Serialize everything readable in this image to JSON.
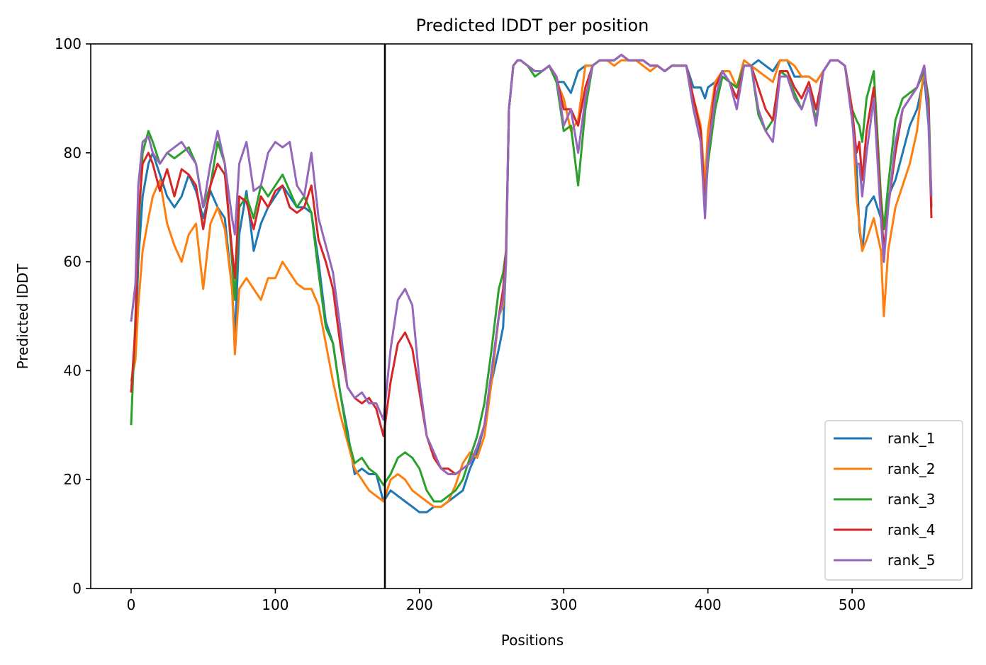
{
  "chart_data": {
    "type": "line",
    "title": "Predicted lDDT per position",
    "xlabel": "Positions",
    "ylabel": "Predicted lDDT",
    "xlim": [
      -28,
      583
    ],
    "ylim": [
      0,
      100
    ],
    "xticks": [
      0,
      100,
      200,
      300,
      400,
      500
    ],
    "yticks": [
      0,
      20,
      40,
      60,
      80,
      100
    ],
    "grid": false,
    "legend_position": "lower-right",
    "vline": {
      "x": 176,
      "color": "#000000"
    },
    "series": [
      {
        "name": "rank_1",
        "color": "#1f77b4",
        "x": [
          0,
          3,
          5,
          8,
          12,
          15,
          20,
          25,
          30,
          35,
          40,
          45,
          50,
          55,
          60,
          65,
          70,
          72,
          75,
          80,
          85,
          90,
          95,
          100,
          105,
          110,
          115,
          120,
          125,
          130,
          135,
          140,
          145,
          150,
          155,
          160,
          165,
          170,
          175,
          180,
          185,
          190,
          195,
          200,
          205,
          210,
          215,
          220,
          225,
          230,
          235,
          240,
          245,
          250,
          255,
          258,
          260,
          262,
          265,
          268,
          270,
          275,
          280,
          285,
          290,
          295,
          300,
          305,
          310,
          315,
          320,
          325,
          330,
          335,
          340,
          345,
          350,
          355,
          360,
          365,
          370,
          375,
          380,
          385,
          390,
          395,
          398,
          400,
          405,
          410,
          415,
          420,
          425,
          430,
          435,
          440,
          445,
          450,
          455,
          460,
          465,
          470,
          475,
          480,
          485,
          490,
          495,
          500,
          503,
          505,
          507,
          510,
          515,
          520,
          522,
          525,
          530,
          535,
          540,
          545,
          550,
          553,
          555
        ],
        "values": [
          36,
          45,
          60,
          72,
          78,
          80,
          76,
          72,
          70,
          72,
          76,
          73,
          68,
          73,
          70,
          68,
          55,
          46,
          65,
          73,
          62,
          67,
          70,
          72,
          74,
          72,
          70,
          70,
          69,
          60,
          49,
          45,
          36,
          29,
          21,
          22,
          21,
          21,
          16,
          18,
          17,
          16,
          15,
          14,
          14,
          15,
          15,
          16,
          17,
          18,
          22,
          25,
          30,
          38,
          44,
          48,
          60,
          88,
          96,
          97,
          97,
          96,
          95,
          95,
          96,
          93,
          93,
          91,
          95,
          96,
          96,
          97,
          97,
          97,
          98,
          97,
          97,
          97,
          96,
          96,
          95,
          96,
          96,
          96,
          92,
          92,
          90,
          92,
          93,
          95,
          93,
          92,
          96,
          96,
          97,
          96,
          95,
          97,
          97,
          94,
          94,
          94,
          93,
          95,
          97,
          97,
          96,
          88,
          78,
          66,
          62,
          70,
          72,
          68,
          60,
          72,
          75,
          80,
          85,
          88,
          94,
          85,
          70
        ]
      },
      {
        "name": "rank_2",
        "color": "#ff7f0e",
        "x": [
          0,
          3,
          5,
          8,
          12,
          15,
          20,
          25,
          30,
          35,
          40,
          45,
          50,
          55,
          60,
          65,
          70,
          72,
          75,
          80,
          85,
          90,
          95,
          100,
          105,
          110,
          115,
          120,
          125,
          130,
          135,
          140,
          145,
          150,
          155,
          160,
          165,
          170,
          175,
          180,
          185,
          190,
          195,
          200,
          205,
          210,
          215,
          220,
          225,
          230,
          235,
          240,
          245,
          250,
          255,
          258,
          260,
          262,
          265,
          268,
          270,
          275,
          280,
          285,
          290,
          295,
          300,
          305,
          310,
          315,
          320,
          325,
          330,
          335,
          340,
          345,
          350,
          355,
          360,
          365,
          370,
          375,
          380,
          385,
          390,
          395,
          398,
          400,
          405,
          410,
          415,
          420,
          425,
          430,
          435,
          440,
          445,
          450,
          455,
          460,
          465,
          470,
          475,
          480,
          485,
          490,
          495,
          500,
          503,
          505,
          507,
          510,
          515,
          520,
          522,
          525,
          530,
          535,
          540,
          545,
          550,
          553,
          555
        ],
        "values": [
          38,
          42,
          52,
          62,
          68,
          72,
          75,
          67,
          63,
          60,
          65,
          67,
          55,
          67,
          70,
          66,
          55,
          43,
          55,
          57,
          55,
          53,
          57,
          57,
          60,
          58,
          56,
          55,
          55,
          52,
          45,
          38,
          32,
          27,
          22,
          20,
          18,
          17,
          16,
          20,
          21,
          20,
          18,
          17,
          16,
          15,
          15,
          16,
          19,
          23,
          25,
          24,
          28,
          38,
          50,
          52,
          60,
          88,
          96,
          97,
          97,
          96,
          95,
          95,
          96,
          93,
          90,
          84,
          86,
          96,
          96,
          97,
          97,
          96,
          97,
          97,
          97,
          96,
          95,
          96,
          95,
          96,
          96,
          96,
          90,
          85,
          74,
          84,
          93,
          95,
          95,
          92,
          97,
          96,
          95,
          94,
          93,
          97,
          97,
          96,
          94,
          94,
          93,
          95,
          97,
          97,
          96,
          88,
          72,
          67,
          62,
          64,
          68,
          62,
          50,
          62,
          70,
          74,
          78,
          84,
          96,
          88,
          72
        ]
      },
      {
        "name": "rank_3",
        "color": "#2ca02c",
        "x": [
          0,
          3,
          5,
          8,
          12,
          15,
          20,
          25,
          30,
          35,
          40,
          45,
          50,
          55,
          60,
          65,
          70,
          72,
          75,
          80,
          85,
          90,
          95,
          100,
          105,
          110,
          115,
          120,
          125,
          130,
          135,
          140,
          145,
          150,
          155,
          160,
          165,
          170,
          175,
          180,
          185,
          190,
          195,
          200,
          205,
          210,
          215,
          220,
          225,
          230,
          235,
          240,
          245,
          250,
          255,
          258,
          260,
          262,
          265,
          268,
          270,
          275,
          280,
          285,
          290,
          295,
          300,
          305,
          310,
          315,
          320,
          325,
          330,
          335,
          340,
          345,
          350,
          355,
          360,
          365,
          370,
          375,
          380,
          385,
          390,
          395,
          398,
          400,
          405,
          410,
          415,
          420,
          425,
          430,
          435,
          440,
          445,
          450,
          455,
          460,
          465,
          470,
          475,
          480,
          485,
          490,
          495,
          500,
          503,
          505,
          507,
          510,
          515,
          520,
          522,
          525,
          530,
          535,
          540,
          545,
          550,
          553,
          555
        ],
        "values": [
          30,
          50,
          65,
          80,
          84,
          82,
          78,
          80,
          79,
          80,
          81,
          78,
          70,
          74,
          82,
          78,
          60,
          53,
          70,
          72,
          68,
          74,
          72,
          74,
          76,
          73,
          70,
          72,
          69,
          58,
          48,
          45,
          36,
          28,
          23,
          24,
          22,
          21,
          19,
          21,
          24,
          25,
          24,
          22,
          18,
          16,
          16,
          17,
          18,
          20,
          24,
          28,
          34,
          44,
          55,
          58,
          62,
          88,
          96,
          97,
          97,
          96,
          94,
          95,
          96,
          93,
          84,
          85,
          74,
          88,
          96,
          97,
          97,
          97,
          98,
          97,
          97,
          97,
          96,
          96,
          95,
          96,
          96,
          96,
          88,
          82,
          70,
          78,
          88,
          94,
          93,
          92,
          96,
          96,
          87,
          84,
          86,
          95,
          94,
          91,
          88,
          92,
          86,
          95,
          97,
          97,
          96,
          88,
          86,
          85,
          82,
          90,
          95,
          72,
          66,
          74,
          86,
          90,
          91,
          92,
          95,
          90,
          70
        ]
      },
      {
        "name": "rank_4",
        "color": "#d62728",
        "x": [
          0,
          3,
          5,
          8,
          12,
          15,
          20,
          25,
          30,
          35,
          40,
          45,
          50,
          55,
          60,
          65,
          70,
          72,
          75,
          80,
          85,
          90,
          95,
          100,
          105,
          110,
          115,
          120,
          125,
          130,
          135,
          140,
          145,
          150,
          155,
          160,
          165,
          170,
          175,
          180,
          185,
          190,
          195,
          200,
          205,
          210,
          215,
          220,
          225,
          230,
          235,
          240,
          245,
          250,
          255,
          258,
          260,
          262,
          265,
          268,
          270,
          275,
          280,
          285,
          290,
          295,
          300,
          305,
          310,
          315,
          320,
          325,
          330,
          335,
          340,
          345,
          350,
          355,
          360,
          365,
          370,
          375,
          380,
          385,
          390,
          395,
          398,
          400,
          405,
          410,
          415,
          420,
          425,
          430,
          435,
          440,
          445,
          450,
          455,
          460,
          465,
          470,
          475,
          480,
          485,
          490,
          495,
          500,
          503,
          505,
          507,
          510,
          515,
          520,
          522,
          525,
          530,
          535,
          540,
          545,
          550,
          553,
          555
        ],
        "values": [
          36,
          48,
          68,
          78,
          80,
          78,
          73,
          77,
          72,
          77,
          76,
          74,
          66,
          74,
          78,
          76,
          62,
          57,
          72,
          71,
          66,
          72,
          70,
          73,
          74,
          70,
          69,
          70,
          74,
          64,
          60,
          55,
          45,
          37,
          35,
          34,
          35,
          33,
          28,
          38,
          45,
          47,
          44,
          36,
          28,
          24,
          22,
          22,
          21,
          22,
          23,
          26,
          30,
          40,
          50,
          55,
          62,
          88,
          96,
          97,
          97,
          96,
          95,
          95,
          96,
          94,
          88,
          88,
          85,
          92,
          96,
          97,
          97,
          97,
          98,
          97,
          97,
          97,
          96,
          96,
          95,
          96,
          96,
          96,
          90,
          84,
          70,
          80,
          92,
          95,
          93,
          90,
          96,
          96,
          92,
          88,
          86,
          95,
          95,
          92,
          90,
          93,
          88,
          95,
          97,
          97,
          96,
          88,
          80,
          82,
          75,
          84,
          92,
          70,
          62,
          70,
          80,
          88,
          90,
          92,
          96,
          88,
          68
        ]
      },
      {
        "name": "rank_5",
        "color": "#9467bd",
        "x": [
          0,
          3,
          5,
          8,
          12,
          15,
          20,
          25,
          30,
          35,
          40,
          45,
          50,
          55,
          60,
          65,
          70,
          72,
          75,
          80,
          85,
          90,
          95,
          100,
          105,
          110,
          115,
          120,
          125,
          130,
          135,
          140,
          145,
          150,
          155,
          160,
          165,
          170,
          175,
          180,
          185,
          190,
          195,
          200,
          205,
          210,
          215,
          220,
          225,
          230,
          235,
          240,
          245,
          250,
          255,
          258,
          260,
          262,
          265,
          268,
          270,
          275,
          280,
          285,
          290,
          295,
          300,
          305,
          310,
          315,
          320,
          325,
          330,
          335,
          340,
          345,
          350,
          355,
          360,
          365,
          370,
          375,
          380,
          385,
          390,
          395,
          398,
          400,
          405,
          410,
          415,
          420,
          425,
          430,
          435,
          440,
          445,
          450,
          455,
          460,
          465,
          470,
          475,
          480,
          485,
          490,
          495,
          500,
          503,
          505,
          507,
          510,
          515,
          520,
          522,
          525,
          530,
          535,
          540,
          545,
          550,
          553,
          555
        ],
        "values": [
          49,
          56,
          74,
          82,
          83,
          80,
          78,
          80,
          81,
          82,
          80,
          78,
          70,
          78,
          84,
          78,
          68,
          65,
          78,
          82,
          73,
          74,
          80,
          82,
          81,
          82,
          74,
          72,
          80,
          68,
          63,
          58,
          48,
          37,
          35,
          36,
          34,
          34,
          31,
          44,
          53,
          55,
          52,
          38,
          28,
          25,
          22,
          21,
          21,
          22,
          23,
          26,
          30,
          40,
          50,
          53,
          60,
          88,
          96,
          97,
          97,
          96,
          95,
          95,
          96,
          94,
          85,
          88,
          80,
          90,
          96,
          97,
          97,
          97,
          98,
          97,
          97,
          97,
          96,
          96,
          95,
          96,
          96,
          96,
          88,
          82,
          68,
          80,
          90,
          95,
          93,
          88,
          96,
          96,
          88,
          84,
          82,
          94,
          94,
          90,
          88,
          92,
          85,
          95,
          97,
          97,
          96,
          86,
          78,
          78,
          72,
          80,
          90,
          68,
          60,
          70,
          82,
          88,
          90,
          92,
          96,
          86,
          72
        ]
      }
    ]
  }
}
